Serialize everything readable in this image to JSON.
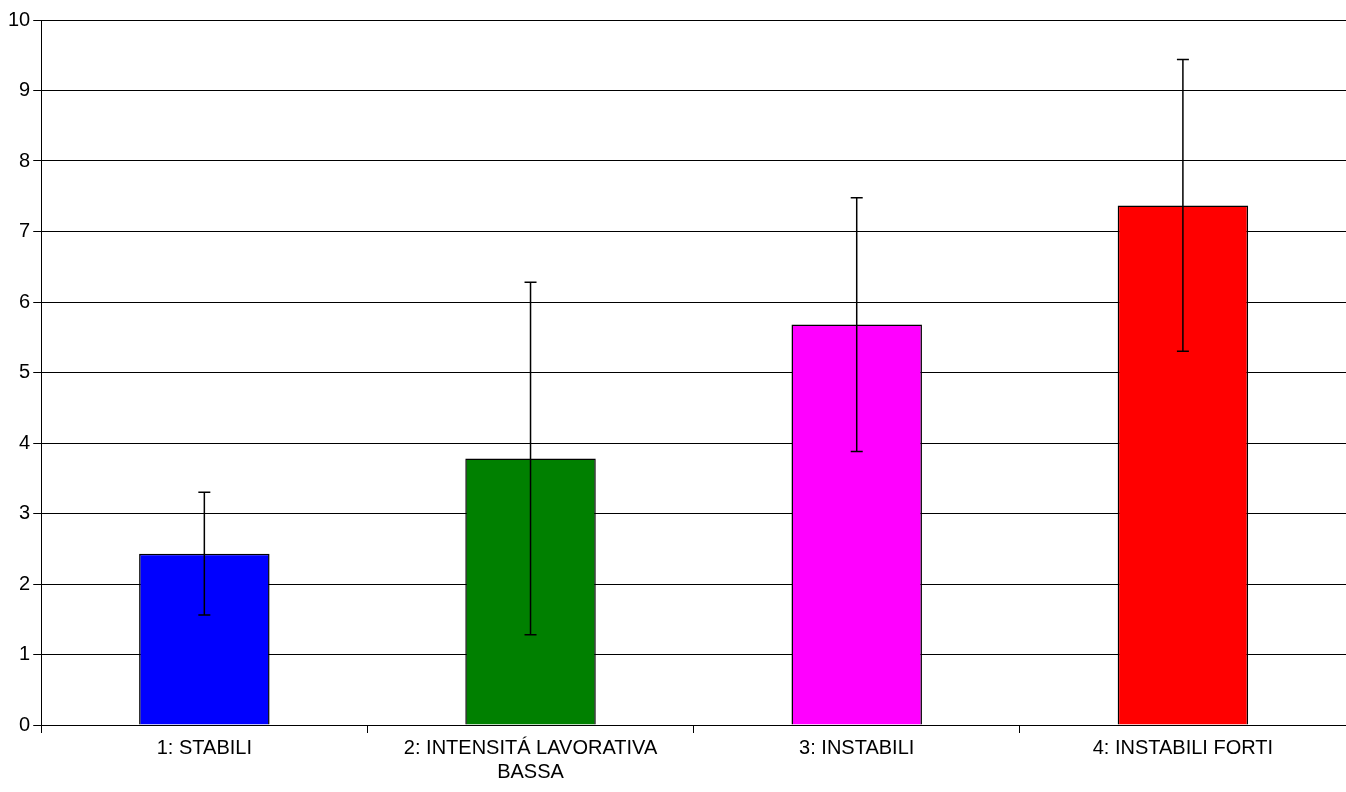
{
  "chart_data": {
    "type": "bar",
    "categories": [
      "1: STABILI",
      "2: INTENSITÁ LAVORATIVA BASSA",
      "3: INSTABILI",
      "4: INSTABILI FORTI"
    ],
    "values": [
      2.43,
      3.78,
      5.68,
      7.37
    ],
    "errors": [
      0.87,
      2.5,
      1.8,
      2.07
    ],
    "colors": [
      "#0000ff",
      "#008000",
      "#ff00ff",
      "#ff0000"
    ],
    "ylim": [
      0,
      10
    ],
    "yticks": [
      0,
      1,
      2,
      3,
      4,
      5,
      6,
      7,
      8,
      9,
      10
    ],
    "grid": "y",
    "legend": false
  }
}
